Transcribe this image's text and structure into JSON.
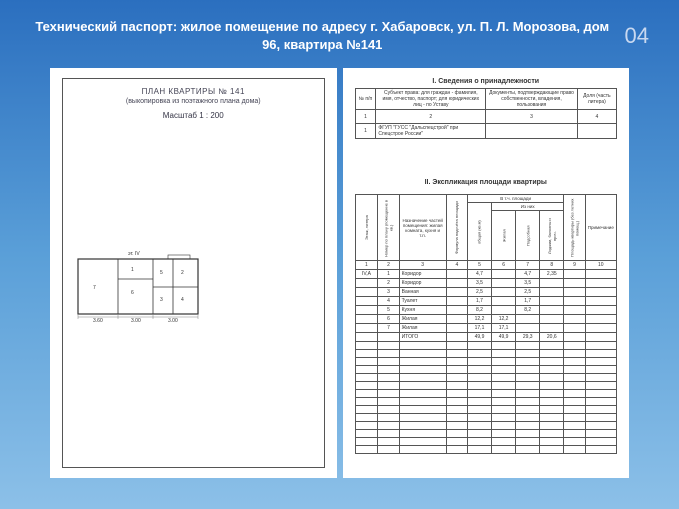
{
  "slide": {
    "title": "Технический паспорт: жилое помещение по адресу г. Хабаровск, ул. П. Л. Морозова, дом 96, квартира №141",
    "page_number": "04",
    "bg_gradient": [
      "#2b6fbf",
      "#5a9fd8",
      "#8cc0e8"
    ]
  },
  "left_page": {
    "title": "ПЛАН   КВАРТИРЫ   № 141",
    "subtitle": "(выкопировка из поэтажного плана дома)",
    "scale": "Масштаб 1 :  200",
    "floor_label": "эт. IV"
  },
  "right_page": {
    "section1": {
      "title": "I. Сведения о принадлежности",
      "columns": [
        "№ п/п",
        "Субъект права:\nдля граждан - фамилия, имя, отчество, паспорт;\nдля юридических лиц - по Уставу",
        "Документы, подтверждающие право собственности, владения, пользования",
        "Доля (часть литера)"
      ],
      "col_nums": [
        "1",
        "2",
        "3",
        "4"
      ],
      "rows": [
        [
          "1",
          "ФГУП \"ГУСС \"Дальспецстрой\" при Спецстрое России\"",
          "",
          ""
        ]
      ]
    },
    "section2": {
      "title": "II. Экспликация площади квартиры",
      "columns": [
        "Этаж, литера",
        "Номер по плану (помещение в кв.)",
        "Назначение частей помещения: жилая комната, кухня и т.п.",
        "Формула подсчёта площади",
        "В т.ч. площади",
        "Площадь квартиры (без летних помещ.)",
        "Примечание"
      ],
      "sub_columns": [
        "общая (кв.м)",
        "Из них"
      ],
      "sub_sub_columns": [
        "Жилая",
        "Подсобная",
        "Лоджии, балконы и проч."
      ],
      "col_nums": [
        "1",
        "2",
        "3",
        "4",
        "5",
        "6",
        "7",
        "8",
        "9",
        "10"
      ],
      "rows": [
        [
          "IV,А",
          "1",
          "Коридор",
          "",
          "4,7",
          "",
          "4,7",
          "2,35",
          "",
          ""
        ],
        [
          "",
          "2",
          "Коридор",
          "",
          "3,5",
          "",
          "3,5",
          "",
          "",
          ""
        ],
        [
          "",
          "3",
          "Ванная",
          "",
          "2,5",
          "",
          "2,5",
          "",
          "",
          ""
        ],
        [
          "",
          "4",
          "Туалет",
          "",
          "1,7",
          "",
          "1,7",
          "",
          "",
          ""
        ],
        [
          "",
          "5",
          "Кухня",
          "",
          "8,2",
          "",
          "8,2",
          "",
          "",
          ""
        ],
        [
          "",
          "6",
          "Жилая",
          "",
          "12,2",
          "12,2",
          "",
          "",
          "",
          ""
        ],
        [
          "",
          "7",
          "Жилая",
          "",
          "17,1",
          "17,1",
          "",
          "",
          "",
          ""
        ]
      ],
      "total_label": "ИТОГО",
      "total": [
        "",
        "",
        "ИТОГО",
        "",
        "49,9",
        "49,9",
        "29,3",
        "20,6",
        "",
        ""
      ]
    }
  }
}
